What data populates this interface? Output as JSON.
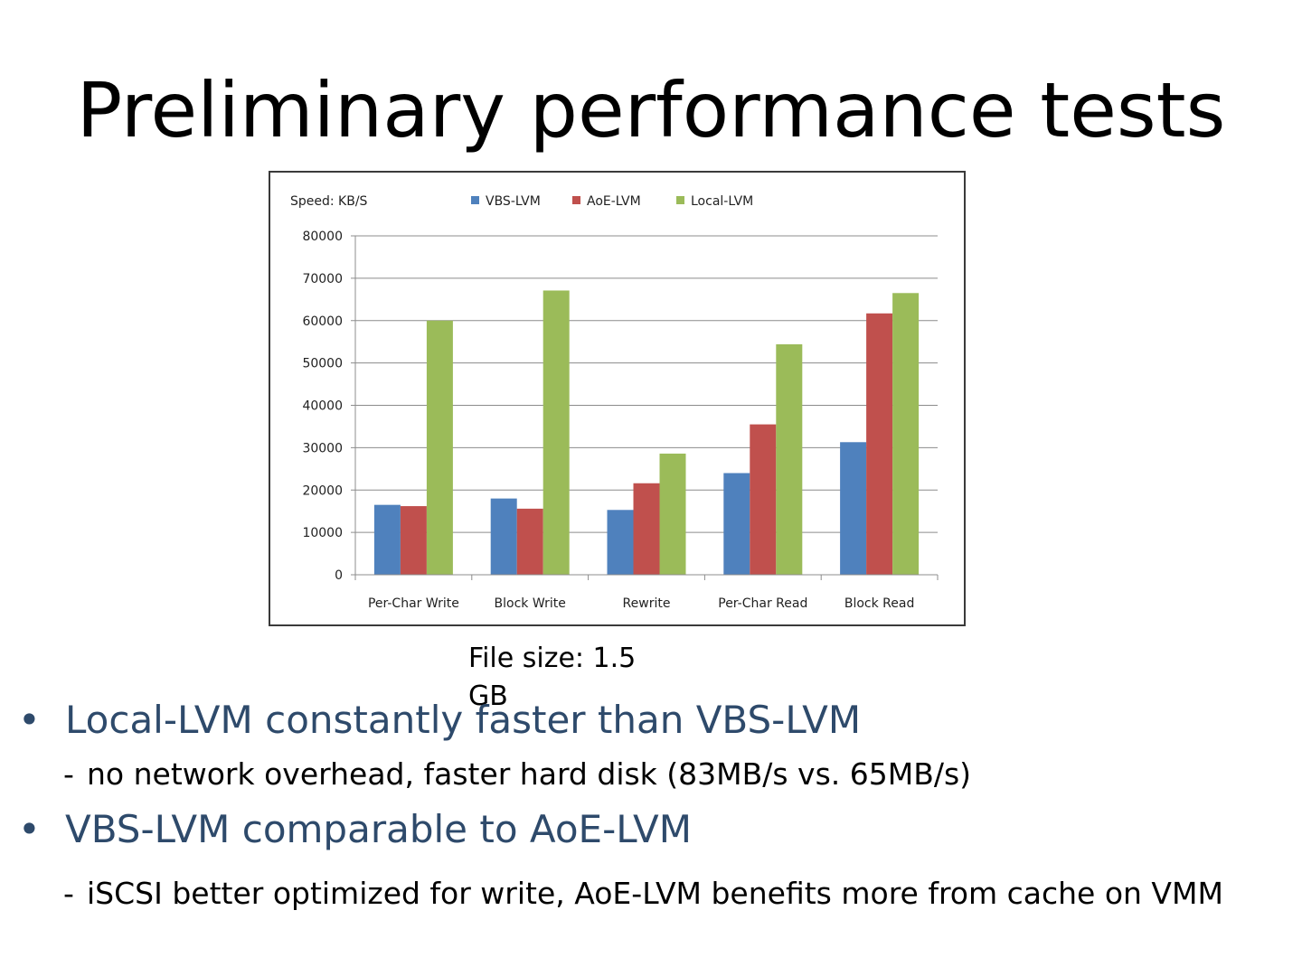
{
  "slide": {
    "title": "Preliminary performance tests",
    "file_size_note": "File size: 1.5 GB"
  },
  "bullets": [
    {
      "text": "Local-LVM constantly faster than VBS-LVM",
      "sub": "no network overhead, faster hard disk (83MB/s vs. 65MB/s)"
    },
    {
      "text": "VBS-LVM comparable to AoE-LVM",
      "sub": "iSCSI better optimized for write, AoE-LVM benefits more from cache on VMM"
    }
  ],
  "chart_data": {
    "type": "bar",
    "title": "",
    "units_label": "Speed: KB/S",
    "categories": [
      "Per-Char Write",
      "Block Write",
      "Rewrite",
      "Per-Char Read",
      "Block Read"
    ],
    "series": [
      {
        "name": "VBS-LVM",
        "color": "#4f81bd",
        "values": [
          16500,
          18000,
          15300,
          24000,
          31300
        ]
      },
      {
        "name": "AoE-LVM",
        "color": "#c0504d",
        "values": [
          16200,
          15600,
          21600,
          35500,
          61700
        ]
      },
      {
        "name": "Local-LVM",
        "color": "#9bbb59",
        "values": [
          60000,
          67100,
          28600,
          54400,
          66500
        ]
      }
    ],
    "ylim": [
      0,
      80000
    ],
    "yticks": [
      0,
      10000,
      20000,
      30000,
      40000,
      50000,
      60000,
      70000,
      80000
    ],
    "grid": true,
    "legend_position": "top"
  }
}
